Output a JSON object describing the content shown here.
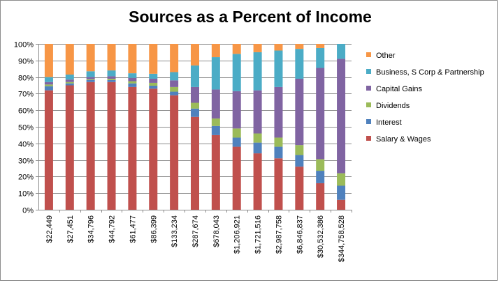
{
  "chart_data": {
    "type": "bar",
    "stacked": true,
    "title": "Sources as a Percent of Income",
    "xlabel": "",
    "ylabel": "",
    "ylim": [
      0,
      100
    ],
    "y_tick_labels": [
      "0%",
      "10%",
      "20%",
      "30%",
      "40%",
      "50%",
      "60%",
      "70%",
      "80%",
      "90%",
      "100%"
    ],
    "grid": true,
    "legend_position": "right",
    "categories": [
      "$22,449",
      "$27,451",
      "$34,796",
      "$44,792",
      "$61,477",
      "$86,399",
      "$133,234",
      "$287,674",
      "$678,043",
      "$1,206,921",
      "$1,721,516",
      "$2,987,758",
      "$6,846,837",
      "$30,532,386",
      "$344,758,528"
    ],
    "series": [
      {
        "name": "Salary & Wages",
        "color": "#c0504d",
        "values": [
          72,
          75,
          77,
          77,
          74,
          73,
          69,
          56,
          45,
          38,
          34,
          31,
          26,
          16,
          6
        ]
      },
      {
        "name": "Interest",
        "color": "#4f81bd",
        "values": [
          2.5,
          1.2,
          1.2,
          1.2,
          2.2,
          1.8,
          2.2,
          5,
          5.5,
          5.5,
          6.5,
          7,
          7,
          7.5,
          8.5
        ]
      },
      {
        "name": "Dividends",
        "color": "#9bbb59",
        "values": [
          1,
          0.8,
          0.5,
          0.8,
          1.3,
          1.7,
          2.8,
          3.5,
          4.5,
          5.5,
          5.5,
          5.5,
          6,
          7,
          7.5
        ]
      },
      {
        "name": "Capital Gains",
        "color": "#8064a2",
        "values": [
          1.5,
          1.5,
          1.3,
          1.5,
          2,
          2.5,
          4,
          9.5,
          17.5,
          22.5,
          26,
          30.5,
          40,
          55,
          69
        ]
      },
      {
        "name": "Business, S Corp & Partnership",
        "color": "#4bacc6",
        "values": [
          3,
          3,
          3.5,
          3.5,
          2.8,
          3,
          5,
          13,
          19.5,
          22.5,
          23,
          22,
          18,
          12,
          9
        ]
      },
      {
        "name": "Other",
        "color": "#f79646",
        "values": [
          20,
          18.5,
          16.5,
          16,
          17.7,
          18,
          17,
          13,
          8,
          6,
          5,
          4,
          3,
          2.5,
          0
        ]
      }
    ]
  }
}
